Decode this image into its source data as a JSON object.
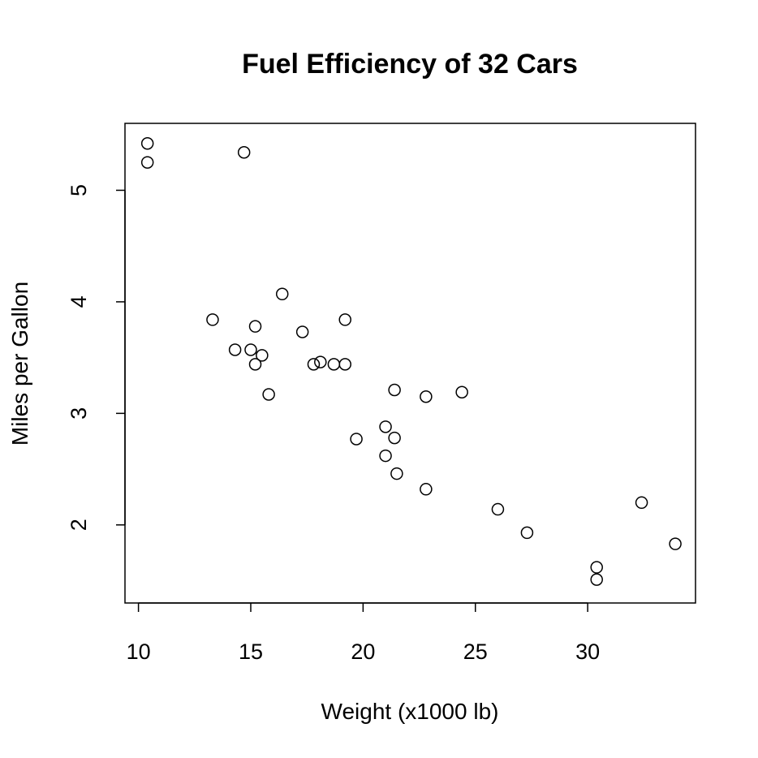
{
  "chart_data": {
    "type": "scatter",
    "title": "Fuel Efficiency of 32 Cars",
    "xlabel": "Weight (x1000 lb)",
    "ylabel": "Miles per Gallon",
    "xlim": [
      9.4,
      34.8
    ],
    "ylim": [
      1.3,
      5.6
    ],
    "x_ticks": [
      10,
      15,
      20,
      25,
      30
    ],
    "y_ticks": [
      2,
      3,
      4,
      5
    ],
    "x_tick_labels": [
      "10",
      "15",
      "20",
      "25",
      "30"
    ],
    "y_tick_labels": [
      "2",
      "3",
      "4",
      "5"
    ],
    "grid": false,
    "marker": "open-circle",
    "x": [
      10.4,
      10.4,
      14.7,
      16.4,
      13.3,
      19.2,
      15.2,
      17.3,
      14.3,
      15.0,
      15.5,
      15.2,
      17.8,
      18.1,
      18.7,
      19.2,
      15.8,
      21.4,
      24.4,
      22.8,
      21.0,
      19.7,
      21.4,
      21.0,
      21.5,
      22.8,
      26.0,
      27.3,
      32.4,
      33.9,
      30.4,
      30.4
    ],
    "y": [
      5.42,
      5.25,
      5.34,
      4.07,
      3.84,
      3.84,
      3.78,
      3.73,
      3.57,
      3.57,
      3.52,
      3.44,
      3.44,
      3.46,
      3.44,
      3.44,
      3.17,
      3.21,
      3.19,
      3.15,
      2.88,
      2.77,
      2.78,
      2.62,
      2.46,
      2.32,
      2.14,
      1.93,
      2.2,
      1.83,
      1.62,
      1.51
    ]
  }
}
